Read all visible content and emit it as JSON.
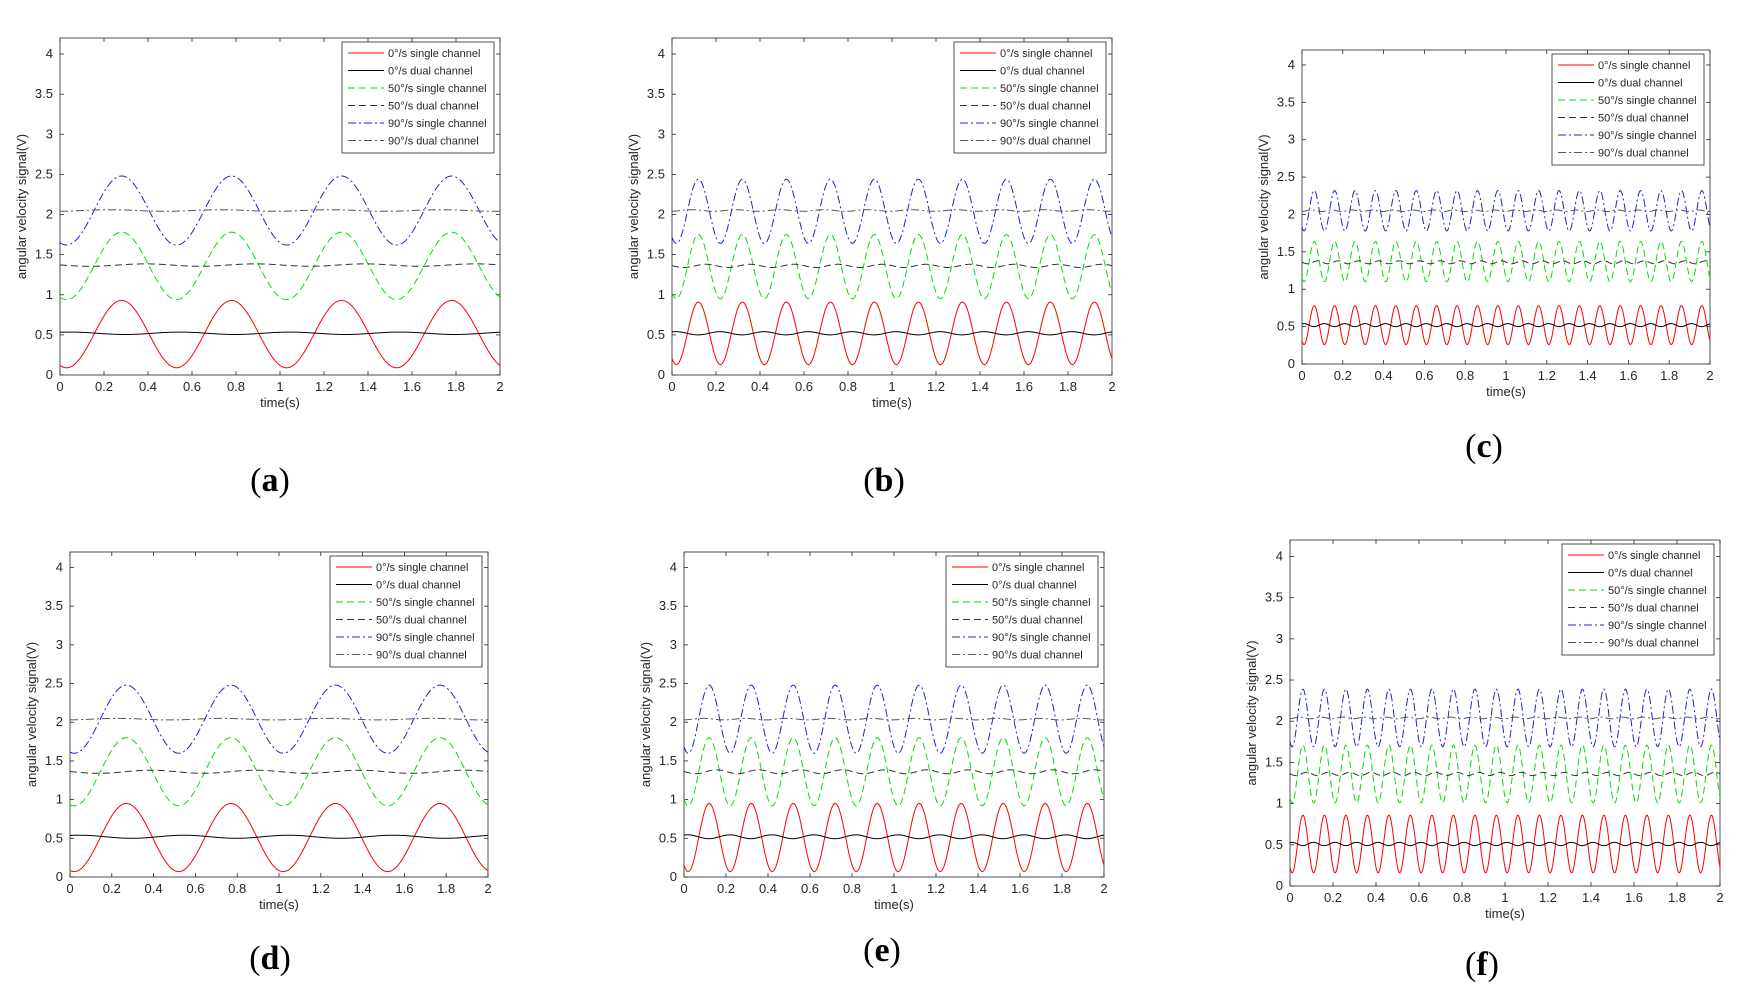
{
  "figure": {
    "captions": [
      "(a)",
      "(b)",
      "(c)",
      "(d)",
      "(e)",
      "(f)"
    ],
    "caption_letters": [
      "a",
      "b",
      "c",
      "d",
      "e",
      "f"
    ]
  },
  "colors": {
    "red": "#ff0000",
    "black": "#000000",
    "green": "#00e000",
    "gray_dash": "#333333",
    "blue": "#2020dd",
    "gray_dashdot": "#555555",
    "axis": "#262626"
  },
  "chart_data": [
    {
      "id": "a",
      "type": "line",
      "xlabel": "time(s)",
      "ylabel": "angular velocity signal(V)",
      "xlim": [
        0,
        2
      ],
      "ylim": [
        0,
        4.2
      ],
      "xticks": [
        "0",
        "0.2",
        "0.4",
        "0.6",
        "0.8",
        "1",
        "1.2",
        "1.4",
        "1.6",
        "1.8",
        "2"
      ],
      "yticks": [
        "0",
        "0.5",
        "1",
        "1.5",
        "2",
        "2.5",
        "3",
        "3.5",
        "4"
      ],
      "frequency_hz": 2,
      "legend": [
        "0°/s single channel",
        "0°/s dual channel",
        "50°/s single channel",
        "50°/s dual channel",
        "90°/s single channel",
        "90°/s dual channel"
      ],
      "series": [
        {
          "name": "0°/s single channel",
          "style": "solid",
          "color": "red",
          "offset": 0.51,
          "amplitude": 0.42,
          "phase_peak": 0.28,
          "ripple": 0
        },
        {
          "name": "0°/s dual channel",
          "style": "solid",
          "color": "black",
          "offset": 0.52,
          "amplitude": 0,
          "ripple": 0.015
        },
        {
          "name": "50°/s single channel",
          "style": "dashed",
          "color": "green",
          "offset": 1.36,
          "amplitude": 0.42,
          "phase_peak": 0.28,
          "ripple": 0
        },
        {
          "name": "50°/s dual channel",
          "style": "dashed",
          "color": "gray_dash",
          "offset": 1.37,
          "amplitude": 0,
          "ripple": 0.015
        },
        {
          "name": "90°/s single channel",
          "style": "dashdot",
          "color": "blue",
          "offset": 2.05,
          "amplitude": 0.43,
          "phase_peak": 0.28,
          "ripple": 0
        },
        {
          "name": "90°/s dual channel",
          "style": "dashdot",
          "color": "gray_dashdot",
          "offset": 2.05,
          "amplitude": 0,
          "ripple": 0.01
        }
      ]
    },
    {
      "id": "b",
      "type": "line",
      "xlabel": "time(s)",
      "ylabel": "angular velocity signal(V)",
      "xlim": [
        0,
        2
      ],
      "ylim": [
        0,
        4.2
      ],
      "xticks": [
        "0",
        "0.2",
        "0.4",
        "0.6",
        "0.8",
        "1",
        "1.2",
        "1.4",
        "1.6",
        "1.8",
        "2"
      ],
      "yticks": [
        "0",
        "0.5",
        "1",
        "1.5",
        "2",
        "2.5",
        "3",
        "3.5",
        "4"
      ],
      "frequency_hz": 5,
      "legend": [
        "0°/s single channel",
        "0°/s dual channel",
        "50°/s single channel",
        "50°/s dual channel",
        "90°/s single channel",
        "90°/s dual channel"
      ],
      "series": [
        {
          "name": "0°/s single channel",
          "style": "solid",
          "color": "red",
          "offset": 0.52,
          "amplitude": 0.39,
          "phase_peak": 0.12,
          "ripple": 0
        },
        {
          "name": "0°/s dual channel",
          "style": "solid",
          "color": "black",
          "offset": 0.52,
          "amplitude": 0,
          "ripple": 0.02
        },
        {
          "name": "50°/s single channel",
          "style": "dashed",
          "color": "green",
          "offset": 1.35,
          "amplitude": 0.4,
          "phase_peak": 0.12,
          "ripple": 0
        },
        {
          "name": "50°/s dual channel",
          "style": "dashed",
          "color": "gray_dash",
          "offset": 1.36,
          "amplitude": 0,
          "ripple": 0.02
        },
        {
          "name": "90°/s single channel",
          "style": "dashdot",
          "color": "blue",
          "offset": 2.04,
          "amplitude": 0.4,
          "phase_peak": 0.12,
          "ripple": 0
        },
        {
          "name": "90°/s dual channel",
          "style": "dashdot",
          "color": "gray_dashdot",
          "offset": 2.05,
          "amplitude": 0,
          "ripple": 0.01
        }
      ]
    },
    {
      "id": "c",
      "type": "line",
      "xlabel": "time(s)",
      "ylabel": "angular velocity signal(V)",
      "xlim": [
        0,
        2
      ],
      "ylim": [
        0,
        4.2
      ],
      "xticks": [
        "0",
        "0.2",
        "0.4",
        "0.6",
        "0.8",
        "1",
        "1.2",
        "1.4",
        "1.6",
        "1.8",
        "2"
      ],
      "yticks": [
        "0",
        "0.5",
        "1",
        "1.5",
        "2",
        "2.5",
        "3",
        "3.5",
        "4"
      ],
      "frequency_hz": 10,
      "legend": [
        "0°/s single channel",
        "0°/s dual channel",
        "50°/s single channel",
        "50°/s dual channel",
        "90°/s single channel",
        "90°/s dual channel"
      ],
      "series": [
        {
          "name": "0°/s single channel",
          "style": "solid",
          "color": "red",
          "offset": 0.52,
          "amplitude": 0.26,
          "phase_peak": 0.06,
          "ripple": 0
        },
        {
          "name": "0°/s dual channel",
          "style": "solid",
          "color": "black",
          "offset": 0.52,
          "amplitude": 0,
          "ripple": 0.02
        },
        {
          "name": "50°/s single channel",
          "style": "dashed",
          "color": "green",
          "offset": 1.37,
          "amplitude": 0.27,
          "phase_peak": 0.06,
          "ripple": 0
        },
        {
          "name": "50°/s dual channel",
          "style": "dashed",
          "color": "gray_dash",
          "offset": 1.36,
          "amplitude": 0,
          "ripple": 0.02
        },
        {
          "name": "90°/s single channel",
          "style": "dashdot",
          "color": "blue",
          "offset": 2.05,
          "amplitude": 0.27,
          "phase_peak": 0.06,
          "ripple": 0
        },
        {
          "name": "90°/s dual channel",
          "style": "dashdot",
          "color": "gray_dashdot",
          "offset": 2.05,
          "amplitude": 0,
          "ripple": 0.01
        }
      ]
    },
    {
      "id": "d",
      "type": "line",
      "xlabel": "time(s)",
      "ylabel": "angular velocity signal(V)",
      "xlim": [
        0,
        2
      ],
      "ylim": [
        0,
        4.2
      ],
      "xticks": [
        "0",
        "0.2",
        "0.4",
        "0.6",
        "0.8",
        "1",
        "1.2",
        "1.4",
        "1.6",
        "1.8",
        "2"
      ],
      "yticks": [
        "0",
        "0.5",
        "1",
        "1.5",
        "2",
        "2.5",
        "3",
        "3.5",
        "4"
      ],
      "frequency_hz": 2,
      "legend": [
        "0°/s single channel",
        "0°/s dual channel",
        "50°/s single channel",
        "50°/s dual channel",
        "90°/s single channel",
        "90°/s dual channel"
      ],
      "series": [
        {
          "name": "0°/s single channel",
          "style": "solid",
          "color": "red",
          "offset": 0.51,
          "amplitude": 0.44,
          "phase_peak": 0.27,
          "ripple": 0
        },
        {
          "name": "0°/s dual channel",
          "style": "solid",
          "color": "black",
          "offset": 0.52,
          "amplitude": 0,
          "ripple": 0.02
        },
        {
          "name": "50°/s single channel",
          "style": "dashed",
          "color": "green",
          "offset": 1.36,
          "amplitude": 0.44,
          "phase_peak": 0.27,
          "ripple": 0
        },
        {
          "name": "50°/s dual channel",
          "style": "dashed",
          "color": "gray_dash",
          "offset": 1.36,
          "amplitude": 0,
          "ripple": 0.02
        },
        {
          "name": "90°/s single channel",
          "style": "dashdot",
          "color": "blue",
          "offset": 2.04,
          "amplitude": 0.44,
          "phase_peak": 0.27,
          "ripple": 0
        },
        {
          "name": "90°/s dual channel",
          "style": "dashdot",
          "color": "gray_dashdot",
          "offset": 2.04,
          "amplitude": 0,
          "ripple": 0.01
        }
      ]
    },
    {
      "id": "e",
      "type": "line",
      "xlabel": "time(s)",
      "ylabel": "angular velocity signal(V)",
      "xlim": [
        0,
        2
      ],
      "ylim": [
        0,
        4.2
      ],
      "xticks": [
        "0",
        "0.2",
        "0.4",
        "0.6",
        "0.8",
        "1",
        "1.2",
        "1.4",
        "1.6",
        "1.8",
        "2"
      ],
      "yticks": [
        "0",
        "0.5",
        "1",
        "1.5",
        "2",
        "2.5",
        "3",
        "3.5",
        "4"
      ],
      "frequency_hz": 5,
      "legend": [
        "0°/s single channel",
        "0°/s dual channel",
        "50°/s single channel",
        "50°/s dual channel",
        "90°/s single channel",
        "90°/s dual channel"
      ],
      "series": [
        {
          "name": "0°/s single channel",
          "style": "solid",
          "color": "red",
          "offset": 0.51,
          "amplitude": 0.44,
          "phase_peak": 0.12,
          "ripple": 0
        },
        {
          "name": "0°/s dual channel",
          "style": "solid",
          "color": "black",
          "offset": 0.52,
          "amplitude": 0,
          "ripple": 0.025
        },
        {
          "name": "50°/s single channel",
          "style": "dashed",
          "color": "green",
          "offset": 1.36,
          "amplitude": 0.44,
          "phase_peak": 0.12,
          "ripple": 0
        },
        {
          "name": "50°/s dual channel",
          "style": "dashed",
          "color": "gray_dash",
          "offset": 1.36,
          "amplitude": 0,
          "ripple": 0.025
        },
        {
          "name": "90°/s single channel",
          "style": "dashdot",
          "color": "blue",
          "offset": 2.04,
          "amplitude": 0.44,
          "phase_peak": 0.12,
          "ripple": 0
        },
        {
          "name": "90°/s dual channel",
          "style": "dashdot",
          "color": "gray_dashdot",
          "offset": 2.04,
          "amplitude": 0,
          "ripple": 0.01
        }
      ]
    },
    {
      "id": "f",
      "type": "line",
      "xlabel": "time(s)",
      "ylabel": "angular velocity signal(V)",
      "xlim": [
        0,
        2
      ],
      "ylim": [
        0,
        4.2
      ],
      "xticks": [
        "0",
        "0.2",
        "0.4",
        "0.6",
        "0.8",
        "1",
        "1.2",
        "1.4",
        "1.6",
        "1.8",
        "2"
      ],
      "yticks": [
        "0",
        "0.5",
        "1",
        "1.5",
        "2",
        "2.5",
        "3",
        "3.5",
        "4"
      ],
      "frequency_hz": 10,
      "legend": [
        "0°/s single channel",
        "0°/s dual channel",
        "50°/s single channel",
        "50°/s dual channel",
        "90°/s single channel",
        "90°/s dual channel"
      ],
      "series": [
        {
          "name": "0°/s single channel",
          "style": "solid",
          "color": "red",
          "offset": 0.51,
          "amplitude": 0.35,
          "phase_peak": 0.06,
          "ripple": 0
        },
        {
          "name": "0°/s dual channel",
          "style": "solid",
          "color": "black",
          "offset": 0.51,
          "amplitude": 0,
          "ripple": 0.02
        },
        {
          "name": "50°/s single channel",
          "style": "dashed",
          "color": "green",
          "offset": 1.36,
          "amplitude": 0.35,
          "phase_peak": 0.06,
          "ripple": 0
        },
        {
          "name": "50°/s dual channel",
          "style": "dashed",
          "color": "gray_dash",
          "offset": 1.36,
          "amplitude": 0,
          "ripple": 0.02
        },
        {
          "name": "90°/s single channel",
          "style": "dashdot",
          "color": "blue",
          "offset": 2.04,
          "amplitude": 0.35,
          "phase_peak": 0.06,
          "ripple": 0
        },
        {
          "name": "90°/s dual channel",
          "style": "dashdot",
          "color": "gray_dashdot",
          "offset": 2.04,
          "amplitude": 0,
          "ripple": 0.01
        }
      ]
    }
  ]
}
